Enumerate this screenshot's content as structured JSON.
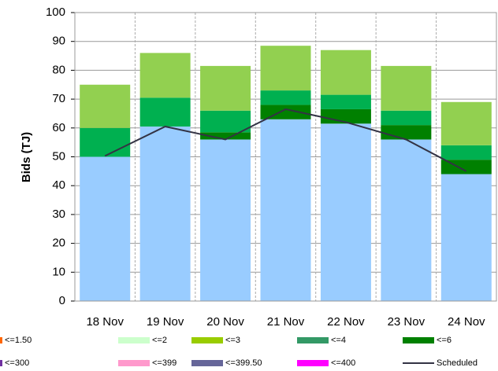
{
  "chart_data": {
    "type": "bar",
    "stacked": true,
    "y_label": "Bids (TJ)",
    "categories": [
      "18 Nov",
      "19 Nov",
      "20 Nov",
      "21 Nov",
      "22 Nov",
      "23 Nov",
      "24 Nov"
    ],
    "series": [
      {
        "color": "#99ccff",
        "values": [
          50,
          60.5,
          56,
          63,
          61.5,
          56,
          44
        ]
      },
      {
        "color": "#008000",
        "values": [
          0,
          0,
          2.5,
          5,
          5,
          5,
          5
        ]
      },
      {
        "color": "#00b050",
        "values": [
          10,
          10,
          7.5,
          5,
          5,
          5,
          5
        ]
      },
      {
        "color": "#92d050",
        "values": [
          15,
          15.5,
          15.5,
          15.5,
          15.5,
          15.5,
          15
        ]
      },
      {
        "name": "Scheduled",
        "type": "line",
        "color": "#333344",
        "values": [
          50.3,
          60.5,
          56,
          66.5,
          62,
          56,
          45
        ]
      }
    ],
    "legend": [
      {
        "name": "<=1.50",
        "color": "#ff6600"
      },
      {
        "name": "<=2",
        "color": "#ccffcc"
      },
      {
        "name": "<=3",
        "color": "#99cc00"
      },
      {
        "name": "<=4",
        "color": "#339966"
      },
      {
        "name": "<=6",
        "color": "#008000"
      },
      {
        "name": "<=300",
        "color": "#7030a0"
      },
      {
        "name": "<=399",
        "color": "#ff99cc"
      },
      {
        "name": "<=399.50",
        "color": "#666699"
      },
      {
        "name": "<=400",
        "color": "#ff00ff"
      }
    ],
    "ylim": [
      0,
      100
    ],
    "yticks": [
      0,
      10,
      20,
      30,
      40,
      50,
      60,
      70,
      80,
      90,
      100
    ],
    "grid": true
  }
}
